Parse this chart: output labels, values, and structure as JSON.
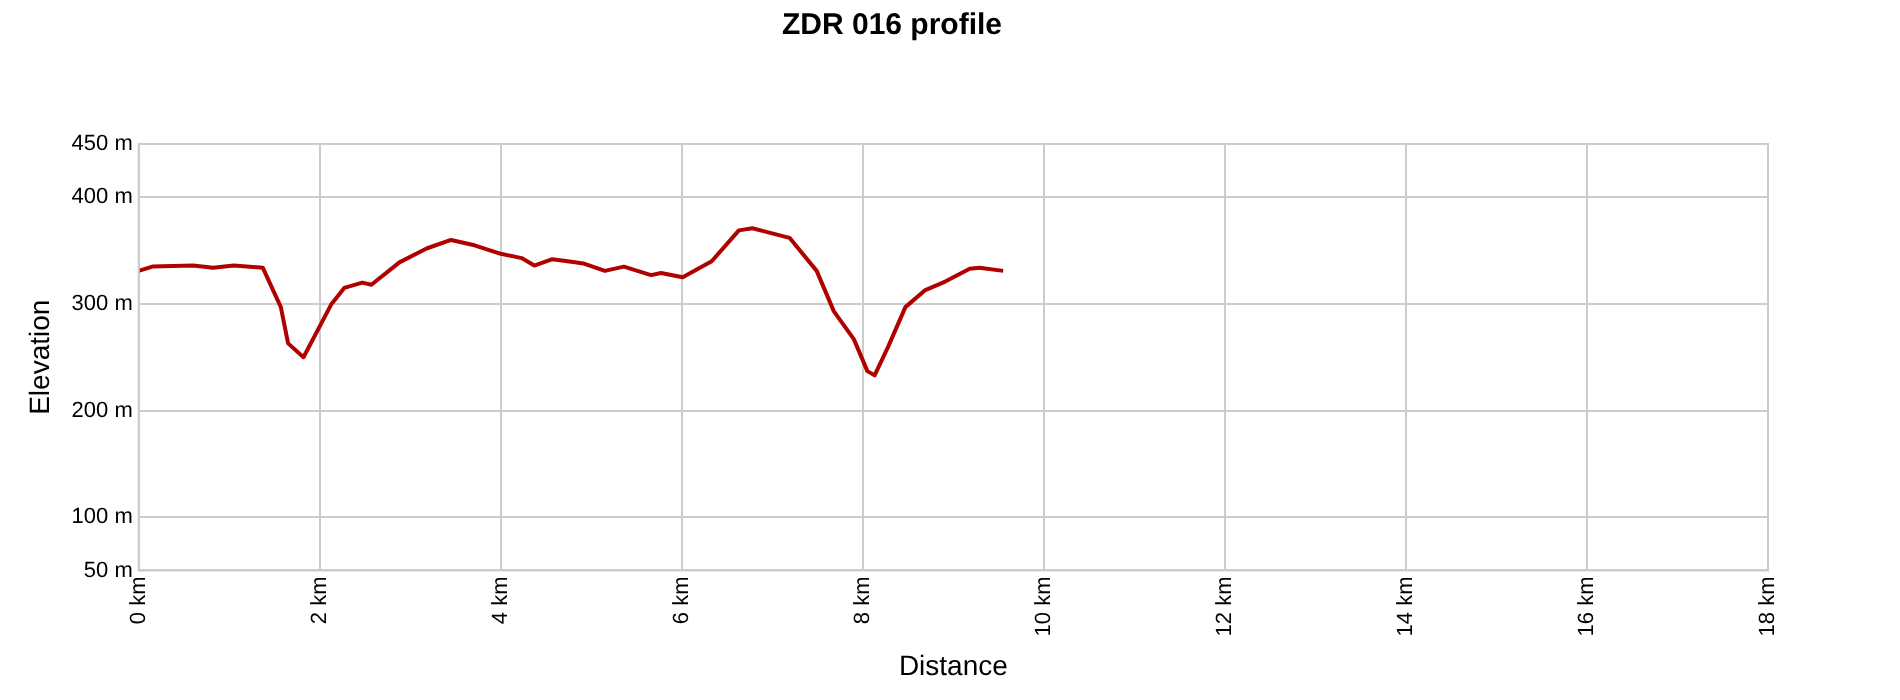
{
  "chart_data": {
    "type": "line",
    "title": "ZDR 016 profile",
    "xlabel": "Distance",
    "ylabel": "Elevation",
    "x": [
      0,
      0.15,
      0.6,
      0.82,
      1.05,
      1.37,
      1.57,
      1.65,
      1.82,
      2.13,
      2.27,
      2.47,
      2.57,
      2.88,
      3.18,
      3.45,
      3.71,
      4.0,
      4.23,
      4.37,
      4.57,
      4.82,
      4.91,
      5.15,
      5.36,
      5.66,
      5.77,
      6.01,
      6.33,
      6.63,
      6.78,
      7.19,
      7.49,
      7.68,
      7.9,
      8.05,
      8.13,
      8.28,
      8.47,
      8.69,
      8.91,
      9.18,
      9.29,
      9.55
    ],
    "series": [
      {
        "color": "#b00000",
        "values": [
          331,
          335,
          336,
          334,
          336,
          334,
          297,
          263,
          250,
          300,
          315,
          320,
          318,
          339,
          352,
          360,
          355,
          347,
          343,
          336,
          342,
          339,
          338,
          331,
          335,
          327,
          329,
          325,
          340,
          369,
          371,
          362,
          331,
          293,
          267,
          237,
          233,
          260,
          297,
          313,
          321,
          333,
          334,
          331
        ]
      }
    ],
    "xlim": [
      0,
      18
    ],
    "xticks": [
      {
        "value": 0,
        "label": "0 km"
      },
      {
        "value": 2,
        "label": "2 km"
      },
      {
        "value": 4,
        "label": "4 km"
      },
      {
        "value": 6,
        "label": "6 km"
      },
      {
        "value": 8,
        "label": "8 km"
      },
      {
        "value": 10,
        "label": "10 km"
      },
      {
        "value": 12,
        "label": "12 km"
      },
      {
        "value": 14,
        "label": "14 km"
      },
      {
        "value": 16,
        "label": "16 km"
      },
      {
        "value": 18,
        "label": "18 km"
      }
    ],
    "ylim": [
      50,
      450
    ],
    "yticks": [
      {
        "value": 50,
        "label": "50 m"
      },
      {
        "value": 100,
        "label": "100 m"
      },
      {
        "value": 200,
        "label": "200 m"
      },
      {
        "value": 300,
        "label": "300 m"
      },
      {
        "value": 400,
        "label": "400 m"
      },
      {
        "value": 450,
        "label": "450 m"
      }
    ],
    "grid": true,
    "legend": false,
    "marker": "none",
    "line_style": "solid"
  }
}
